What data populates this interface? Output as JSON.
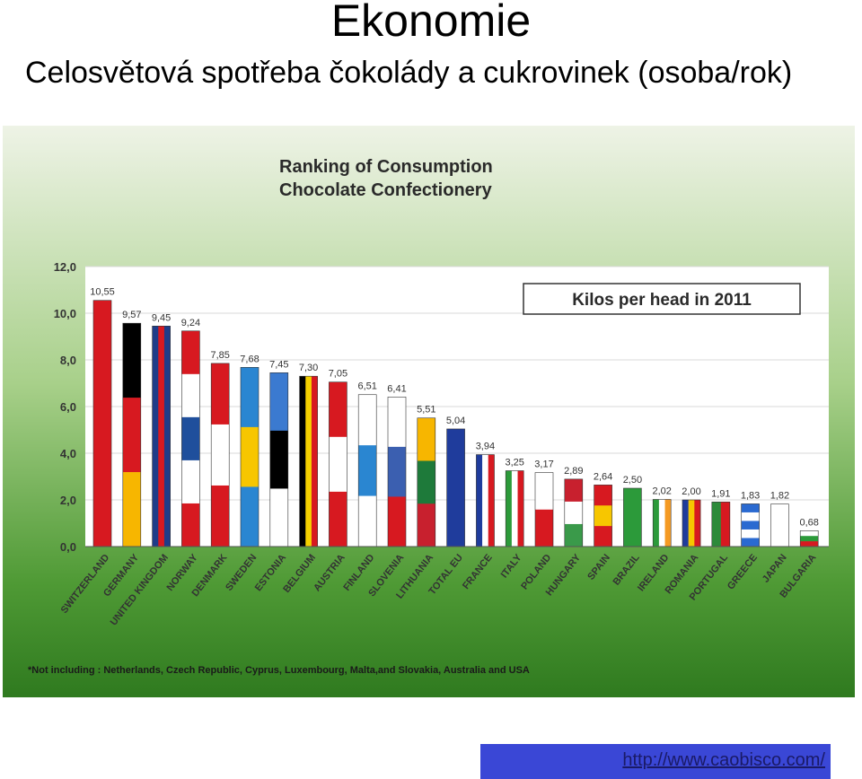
{
  "slide": {
    "title": "Ekonomie",
    "subtitle": "Celosvětová spotřeba čokolády a cukrovinek (osoba/rok)",
    "source_link": "http://www.caobisco.com/"
  },
  "chart_data": {
    "type": "bar",
    "title": "Ranking of Consumption\nChocolate Confectionery",
    "legend_box": "Kilos per head in 2011",
    "footnote": "*Not including : Netherlands, Czech Republic, Cyprus, Luxembourg, Malta,and Slovakia, Australia and USA",
    "ylim": [
      0,
      12
    ],
    "yticks": [
      0,
      2,
      4,
      6,
      8,
      10,
      12
    ],
    "ytick_labels": [
      "0,0",
      "2,0",
      "4,0",
      "6,0",
      "8,0",
      "10,0",
      "12,0"
    ],
    "categories": [
      "SWITZERLAND",
      "GERMANY",
      "UNITED KINGDOM",
      "NORWAY",
      "DENMARK",
      "SWEDEN",
      "ESTONIA",
      "BELGIUM",
      "AUSTRIA",
      "FINLAND",
      "SLOVENIA",
      "LITHUANIA",
      "TOTAL EU",
      "FRANCE",
      "ITALY",
      "POLAND",
      "HUNGARY",
      "SPAIN",
      "BRAZIL",
      "IRELAND",
      "ROMANIA",
      "PORTUGAL",
      "GREECE",
      "JAPAN",
      "BULGARIA"
    ],
    "values": [
      10.55,
      9.57,
      9.45,
      9.24,
      7.85,
      7.68,
      7.45,
      7.3,
      7.05,
      6.51,
      6.41,
      5.51,
      5.04,
      3.94,
      3.25,
      3.17,
      2.89,
      2.64,
      2.5,
      2.02,
      2.0,
      1.91,
      1.83,
      1.82,
      0.68
    ],
    "value_labels": [
      "10,55",
      "9,57",
      "9,45",
      "9,24",
      "7,85",
      "7,68",
      "7,45",
      "7,30",
      "7,05",
      "6,51",
      "6,41",
      "5,51",
      "5,04",
      "3,94",
      "3,25",
      "3,17",
      "2,89",
      "2,64",
      "2,50",
      "2,02",
      "2,00",
      "1,91",
      "1,83",
      "1,82",
      "0,68"
    ],
    "bar_fills": [
      {
        "dir": "h",
        "colors": [
          "#d71920"
        ]
      },
      {
        "dir": "h",
        "colors": [
          "#000000",
          "#d71920",
          "#f7b600"
        ]
      },
      {
        "dir": "v",
        "colors": [
          "#1f3c88",
          "#d71920",
          "#1f3c88"
        ]
      },
      {
        "dir": "h",
        "colors": [
          "#d71920",
          "#ffffff",
          "#1f4f9c",
          "#ffffff",
          "#d71920"
        ]
      },
      {
        "dir": "h",
        "colors": [
          "#d71920",
          "#ffffff",
          "#d71920"
        ]
      },
      {
        "dir": "h",
        "colors": [
          "#2a86d1",
          "#f7c600",
          "#2a86d1"
        ]
      },
      {
        "dir": "h",
        "colors": [
          "#3b7ad0",
          "#000000",
          "#ffffff"
        ]
      },
      {
        "dir": "v",
        "colors": [
          "#000000",
          "#f5d000",
          "#d71920"
        ]
      },
      {
        "dir": "h",
        "colors": [
          "#d71920",
          "#ffffff",
          "#d71920"
        ]
      },
      {
        "dir": "h",
        "colors": [
          "#ffffff",
          "#2a86d1",
          "#ffffff"
        ]
      },
      {
        "dir": "h",
        "colors": [
          "#ffffff",
          "#3b5fb0",
          "#d71920"
        ]
      },
      {
        "dir": "h",
        "colors": [
          "#f7b600",
          "#1e7a3a",
          "#c8202e"
        ]
      },
      {
        "dir": "h",
        "colors": [
          "#1f3c9c"
        ]
      },
      {
        "dir": "v",
        "colors": [
          "#1f3c9c",
          "#ffffff",
          "#d71920"
        ]
      },
      {
        "dir": "v",
        "colors": [
          "#2c9a3a",
          "#ffffff",
          "#d71920"
        ]
      },
      {
        "dir": "h",
        "colors": [
          "#ffffff",
          "#d71920"
        ]
      },
      {
        "dir": "h",
        "colors": [
          "#c8202e",
          "#ffffff",
          "#3a9a4a"
        ]
      },
      {
        "dir": "h",
        "colors": [
          "#d71920",
          "#f7c600",
          "#d71920"
        ]
      },
      {
        "dir": "h",
        "colors": [
          "#2c9a3a"
        ]
      },
      {
        "dir": "v",
        "colors": [
          "#2c9a3a",
          "#ffffff",
          "#f59a23"
        ]
      },
      {
        "dir": "v",
        "colors": [
          "#1f3c9c",
          "#f7c600",
          "#d71920"
        ]
      },
      {
        "dir": "v",
        "colors": [
          "#2c8a3a",
          "#d71920"
        ]
      },
      {
        "dir": "h",
        "colors": [
          "#2a6ad1",
          "#ffffff",
          "#2a6ad1",
          "#ffffff",
          "#2a6ad1"
        ]
      },
      {
        "dir": "h",
        "colors": [
          "#ffffff"
        ]
      },
      {
        "dir": "h",
        "colors": [
          "#ffffff",
          "#2c9a3a",
          "#d71920"
        ]
      }
    ],
    "grid": true,
    "colors": {
      "plot_bg": "#ffffff",
      "grid": "#d9d9d9",
      "text": "#333333",
      "bar_outline": "#333333"
    }
  }
}
